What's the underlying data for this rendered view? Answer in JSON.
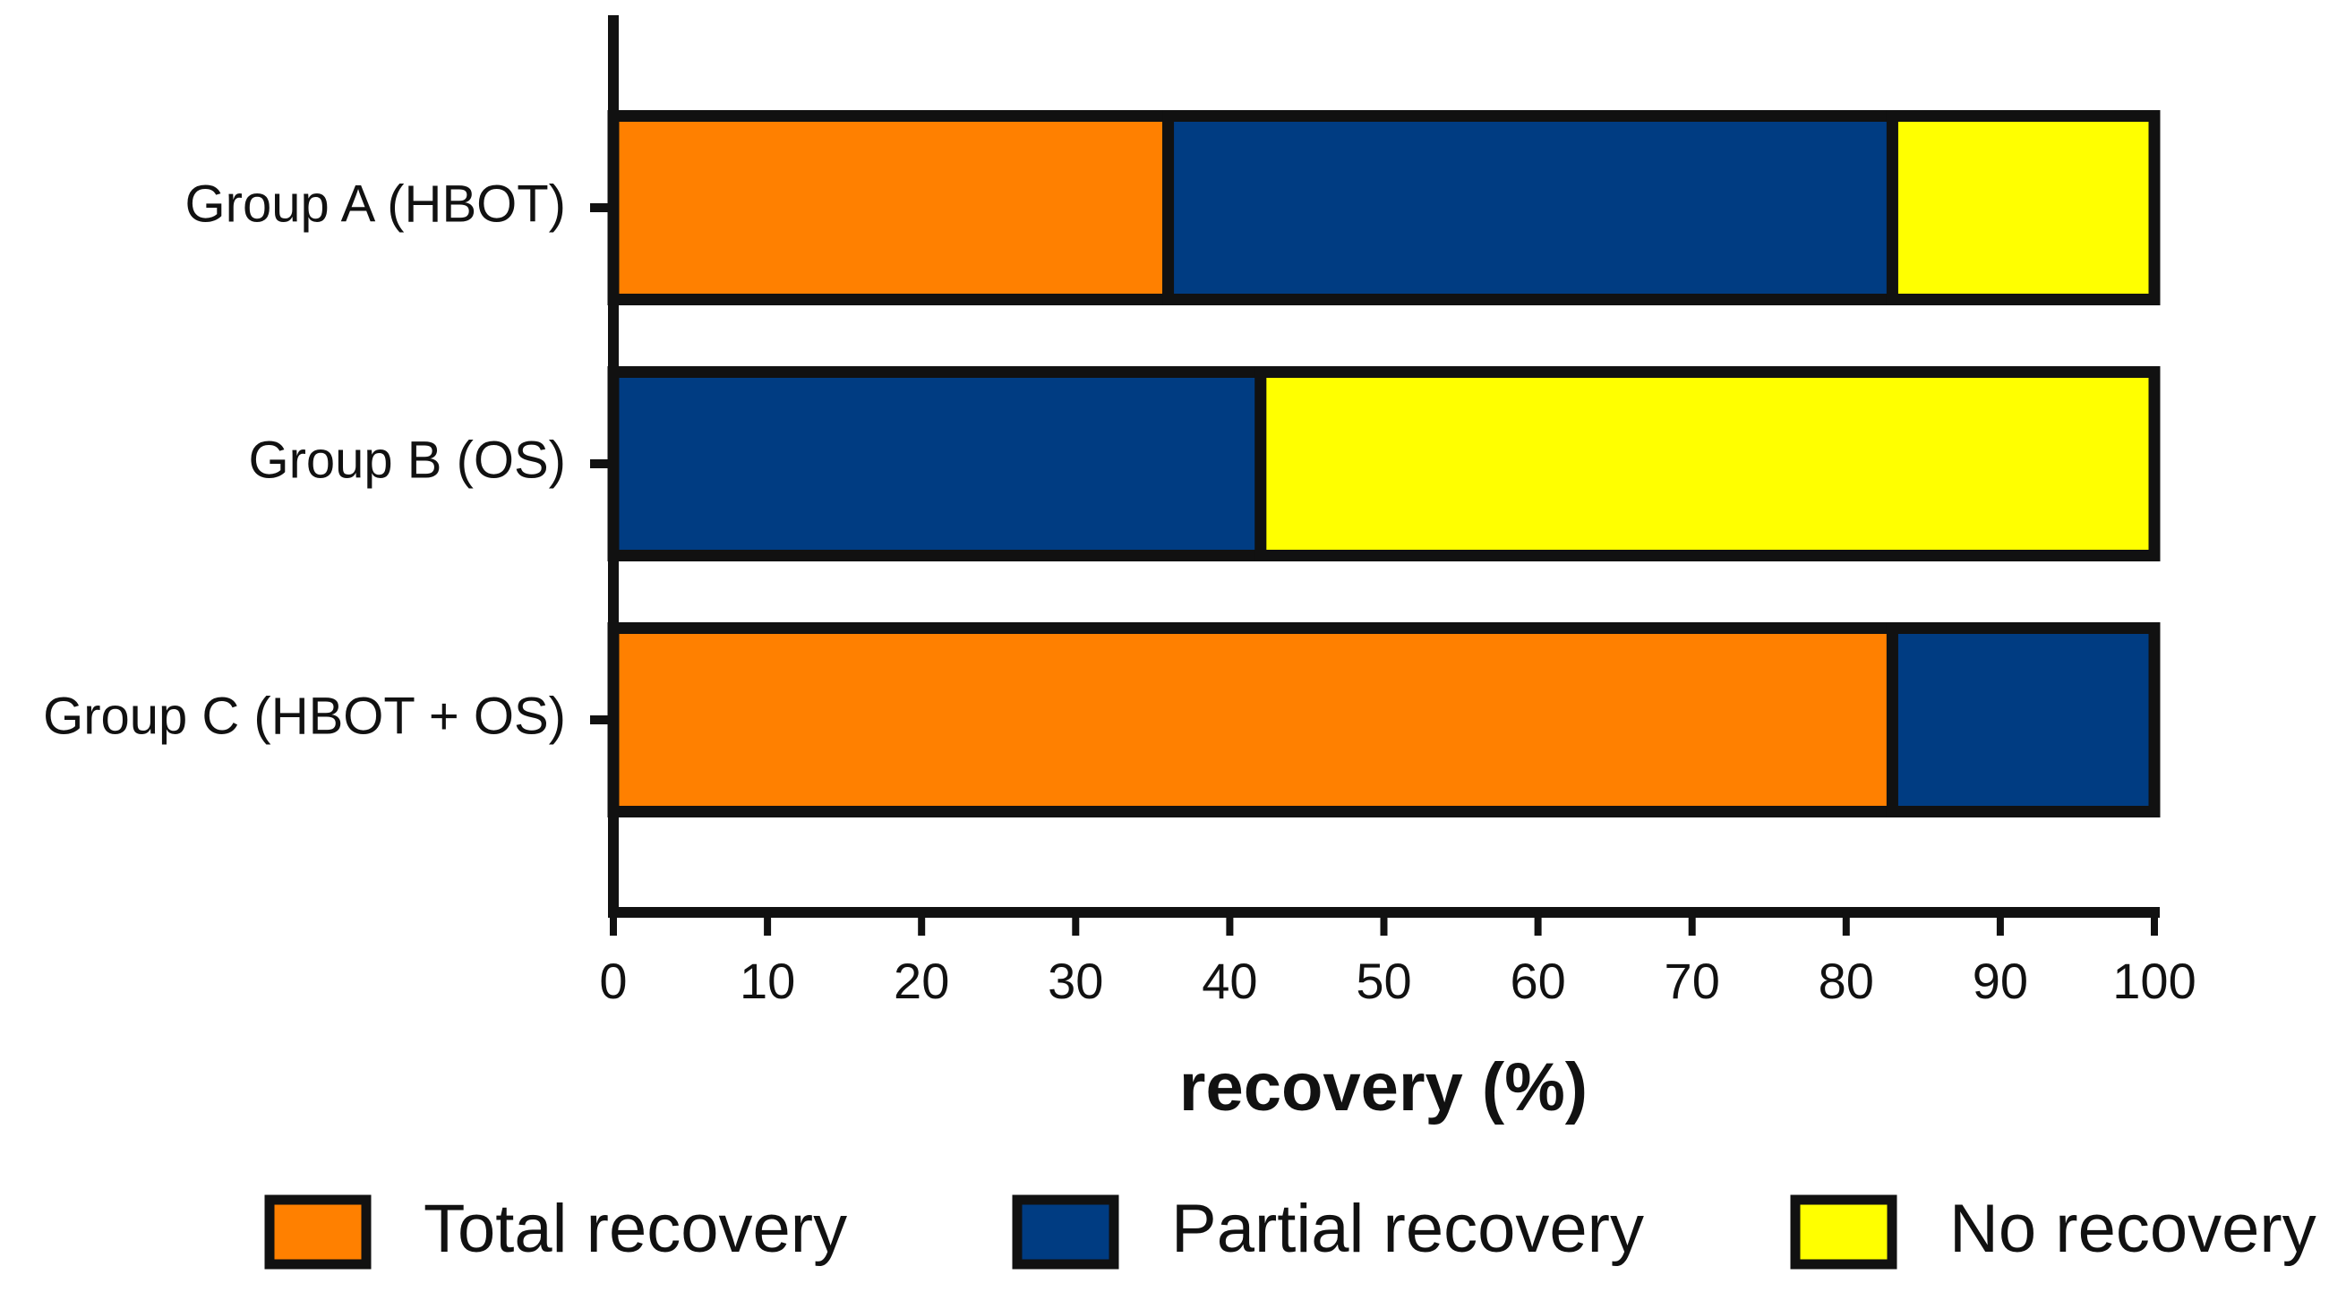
{
  "chart_data": {
    "type": "stacked-bar-horizontal",
    "xlabel": "recovery (%)",
    "categories": [
      "Group A (HBOT)",
      "Group B (OS)",
      "Group C (HBOT + OS)"
    ],
    "series": [
      {
        "name": "Total recovery",
        "color": "#ff8000",
        "values": [
          36,
          0,
          83
        ]
      },
      {
        "name": "Partial recovery",
        "color": "#003c82",
        "values": [
          47,
          42,
          17
        ]
      },
      {
        "name": "No recovery",
        "color": "#ffff00",
        "values": [
          17,
          58,
          0
        ]
      }
    ],
    "xlim": [
      0,
      100
    ],
    "xticks": [
      0,
      10,
      20,
      30,
      40,
      50,
      60,
      70,
      80,
      90,
      100
    ],
    "grid": false,
    "legend": "bottom"
  }
}
